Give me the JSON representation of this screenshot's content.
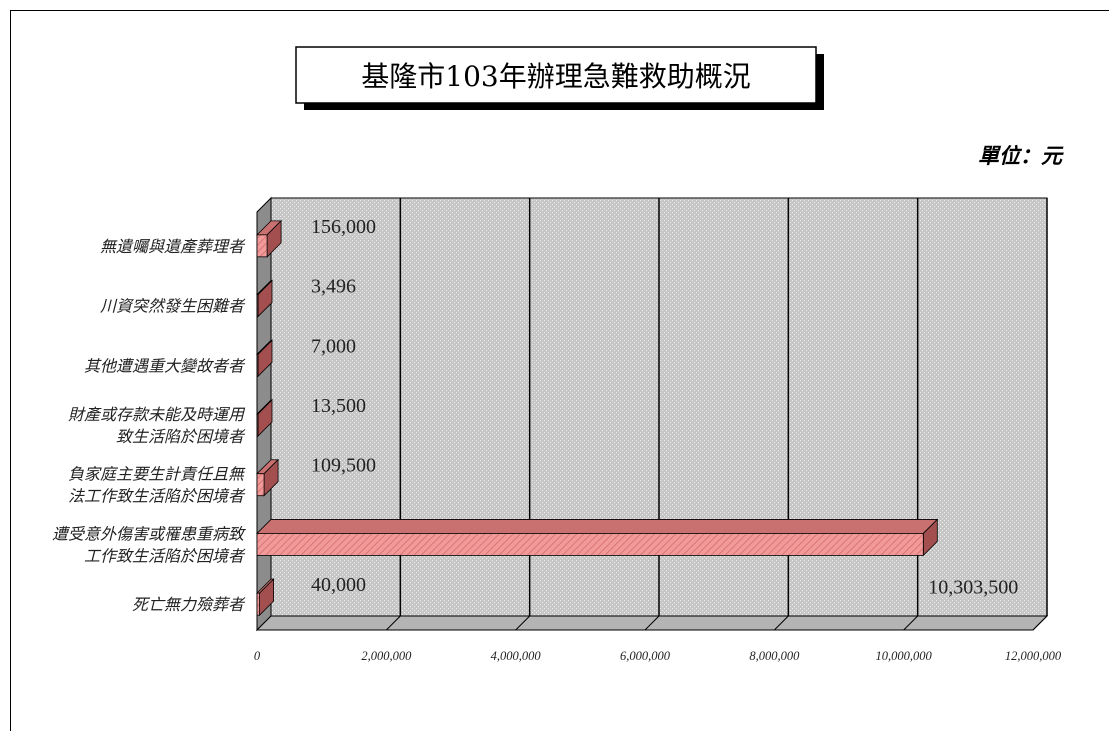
{
  "chart_data": {
    "type": "bar",
    "orientation": "horizontal",
    "title": "基隆市103年辦理急難救助概況",
    "unit": "單位：元",
    "categories": [
      "無遺囑與遺產葬理者",
      "川資突然發生困難者",
      "其他遭遇重大變故者者",
      "財產或存款未能及時運用致生活陷於困境者",
      "負家庭主要生計責任且無法工作致生活陷於困境者",
      "遭受意外傷害或罹患重病致工作致生活陷於困境者",
      "死亡無力殮葬者"
    ],
    "category_lines": [
      [
        "無遺囑與遺產葬理者"
      ],
      [
        "川資突然發生困難者"
      ],
      [
        "其他遭遇重大變故者者"
      ],
      [
        "財產或存款未能及時運用",
        "致生活陷於困境者"
      ],
      [
        "負家庭主要生計責任且無",
        "法工作致生活陷於困境者"
      ],
      [
        "遭受意外傷害或罹患重病致",
        "工作致生活陷於困境者"
      ],
      [
        "死亡無力殮葬者"
      ]
    ],
    "values": [
      156000,
      3496,
      7000,
      13500,
      109500,
      10303500,
      40000
    ],
    "value_labels": [
      "156,000",
      "3,496",
      "7,000",
      "13,500",
      "109,500",
      "10,303,500",
      "40,000"
    ],
    "xlim": [
      0,
      12000000
    ],
    "x_ticks": [
      0,
      2000000,
      4000000,
      6000000,
      8000000,
      10000000,
      12000000
    ],
    "x_tick_labels": [
      "0",
      "2,000,000",
      "4,000,000",
      "6,000,000",
      "8,000,000",
      "10,000,000",
      "12,000,000"
    ],
    "grid": true,
    "colors": {
      "bar_face": "#f29a9a",
      "bar_top": "#c97070",
      "bar_side": "#a34f4f",
      "plot_bg": "#c8c8c8",
      "wall_left": "#8c8c8c",
      "floor": "#b4b4b4"
    }
  }
}
